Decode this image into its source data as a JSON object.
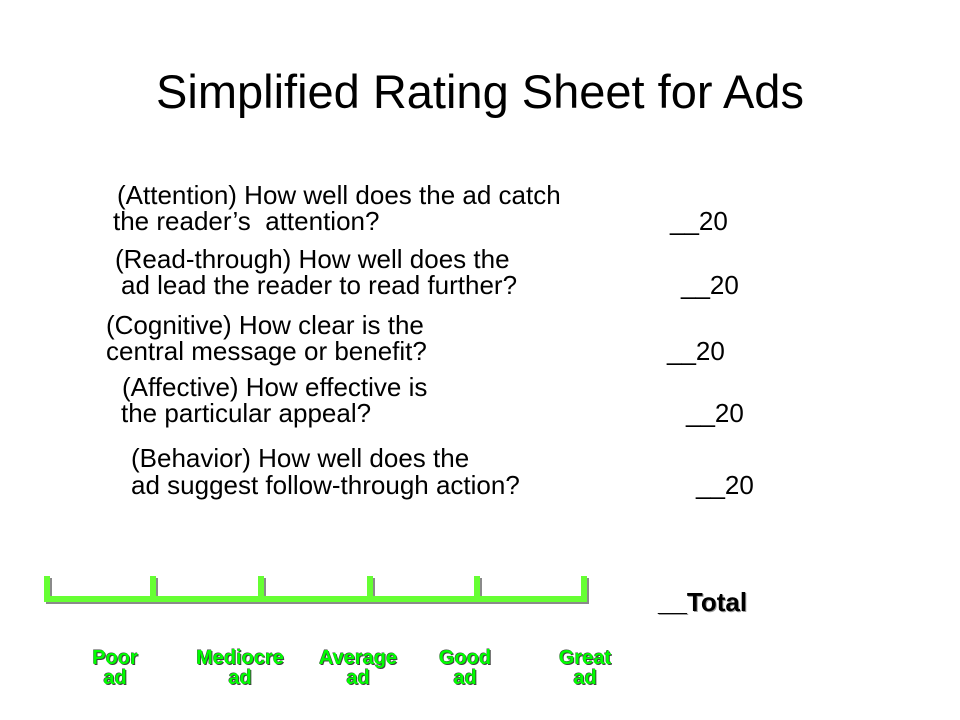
{
  "title": "Simplified Rating Sheet for Ads",
  "questions": [
    {
      "line1": "(Attention) How well does the ad catch",
      "line2": "the reader’s  attention?",
      "score": "__20"
    },
    {
      "line1": "(Read-through) How well does the",
      "line2": "ad lead the reader to read further?",
      "score": "__20"
    },
    {
      "line1": "(Cognitive) How clear is the",
      "line2": "central message or benefit?",
      "score": "__20"
    },
    {
      "line1": "(Affective) How effective is",
      "line2": "the particular appeal?",
      "score": "__20"
    },
    {
      "line1": "(Behavior) How well does the",
      "line2": "ad suggest follow-through action?",
      "score": "__20"
    }
  ],
  "total": "__Total",
  "scale": {
    "color": "#66ff33",
    "labels": [
      {
        "line1": "Poor",
        "line2": "ad"
      },
      {
        "line1": "Mediocre",
        "line2": "ad"
      },
      {
        "line1": "Average",
        "line2": "ad"
      },
      {
        "line1": "Good",
        "line2": "ad"
      },
      {
        "line1": "Great",
        "line2": "ad"
      }
    ]
  }
}
